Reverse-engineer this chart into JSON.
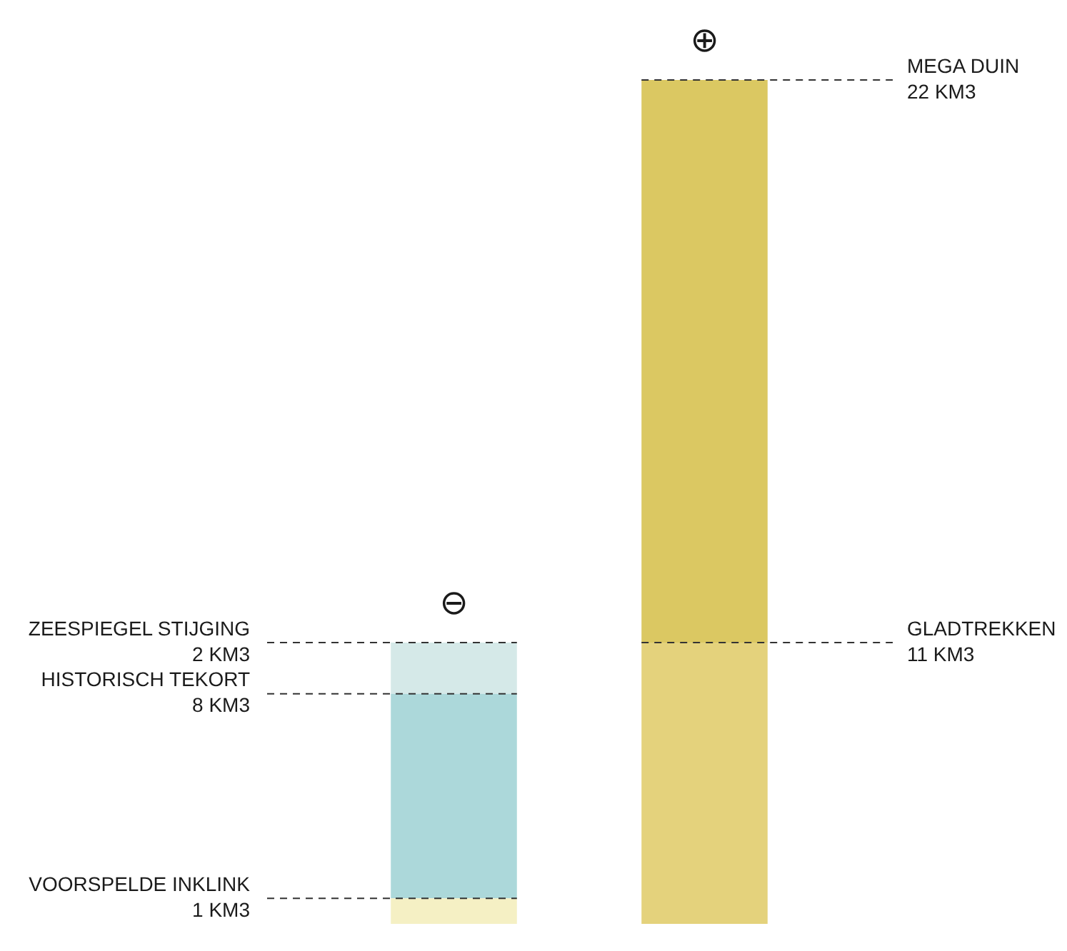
{
  "chart_data": {
    "type": "bar",
    "stacked": true,
    "categories": [
      "⊖",
      "⊕"
    ],
    "series": [
      {
        "name": "VOORSPELDE INKLINK",
        "color": "#f5f0c4",
        "values": [
          1,
          null
        ],
        "value_labels": [
          "1 KM3",
          null
        ]
      },
      {
        "name": "HISTORISCH TEKORT",
        "color": "#acd8da",
        "values": [
          8,
          null
        ],
        "value_labels": [
          "8 KM3",
          null
        ]
      },
      {
        "name": "ZEESPIEGEL STIJGING",
        "color": "#d5e9e8",
        "values": [
          2,
          null
        ],
        "value_labels": [
          "2 KM3",
          null
        ]
      },
      {
        "name": "GLADTREKKEN",
        "color": "#e4d27c",
        "values": [
          null,
          11
        ],
        "value_labels": [
          null,
          "11 KM3"
        ]
      },
      {
        "name": "MEGA DUIN",
        "color": "#dbc862",
        "values": [
          null,
          22
        ],
        "value_labels": [
          null,
          "22 KM3"
        ]
      }
    ],
    "legend": false,
    "tick_labels": false
  }
}
